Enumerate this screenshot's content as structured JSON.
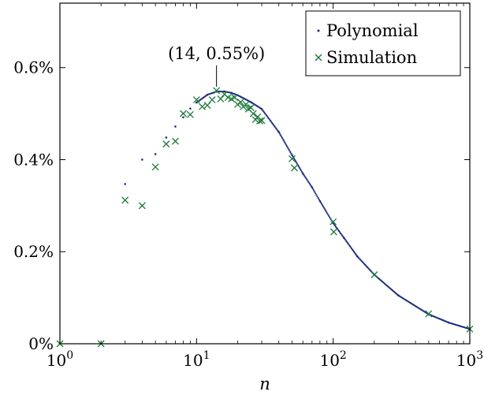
{
  "chart_data": {
    "type": "scatter",
    "xlabel": "n",
    "ylabel": "",
    "x_scale": "log",
    "xlim": [
      1,
      1000
    ],
    "ylim": [
      0,
      0.0074
    ],
    "grid": false,
    "legend_position": "top-right",
    "x_ticks": [
      {
        "value": 1,
        "base": "10",
        "exp": "0"
      },
      {
        "value": 10,
        "base": "10",
        "exp": "1"
      },
      {
        "value": 100,
        "base": "10",
        "exp": "2"
      },
      {
        "value": 1000,
        "base": "10",
        "exp": "3"
      }
    ],
    "y_ticks": [
      {
        "value": 0.0,
        "label": "0%"
      },
      {
        "value": 0.002,
        "label": "0.2%"
      },
      {
        "value": 0.004,
        "label": "0.4%"
      },
      {
        "value": 0.006,
        "label": "0.6%"
      }
    ],
    "annotation": {
      "text": "(14, 0.55%)",
      "x": 14,
      "y": 0.0055
    },
    "series": [
      {
        "name": "Polynomial",
        "marker": "dot",
        "color": "#1f2f80",
        "x": [
          3,
          4,
          5,
          6,
          7,
          8,
          9,
          10,
          12,
          14,
          16,
          18,
          20,
          25,
          30,
          40,
          50,
          60,
          70,
          80,
          100,
          120,
          150,
          200,
          300,
          500,
          700,
          1000
        ],
        "y": [
          0.00347,
          0.004,
          0.00412,
          0.00448,
          0.00472,
          0.00492,
          0.00511,
          0.00524,
          0.00541,
          0.00548,
          0.00548,
          0.00545,
          0.0054,
          0.00525,
          0.0051,
          0.0046,
          0.0041,
          0.0037,
          0.0034,
          0.0031,
          0.00262,
          0.0023,
          0.0019,
          0.0015,
          0.00105,
          0.00064,
          0.00046,
          0.00032
        ]
      },
      {
        "name": "Simulation",
        "marker": "x",
        "color": "#1e7a3a",
        "x": [
          1,
          2,
          3,
          4,
          5,
          6,
          7,
          8,
          9,
          10,
          11,
          12,
          13,
          14,
          15,
          16,
          17,
          18,
          19,
          20,
          21,
          22,
          23,
          24,
          25,
          26,
          27,
          28,
          29,
          30,
          50,
          52,
          100,
          101,
          200,
          500,
          1000
        ],
        "y": [
          0.0,
          0.0,
          0.00312,
          0.003,
          0.00384,
          0.00434,
          0.0044,
          0.005,
          0.00498,
          0.0053,
          0.00515,
          0.00518,
          0.0053,
          0.0055,
          0.00532,
          0.00542,
          0.00535,
          0.00532,
          0.00535,
          0.0052,
          0.00525,
          0.00515,
          0.0052,
          0.0051,
          0.00513,
          0.005,
          0.00487,
          0.00493,
          0.00484,
          0.00485,
          0.00402,
          0.00382,
          0.00265,
          0.00243,
          0.0015,
          0.00065,
          0.00032
        ]
      }
    ]
  }
}
